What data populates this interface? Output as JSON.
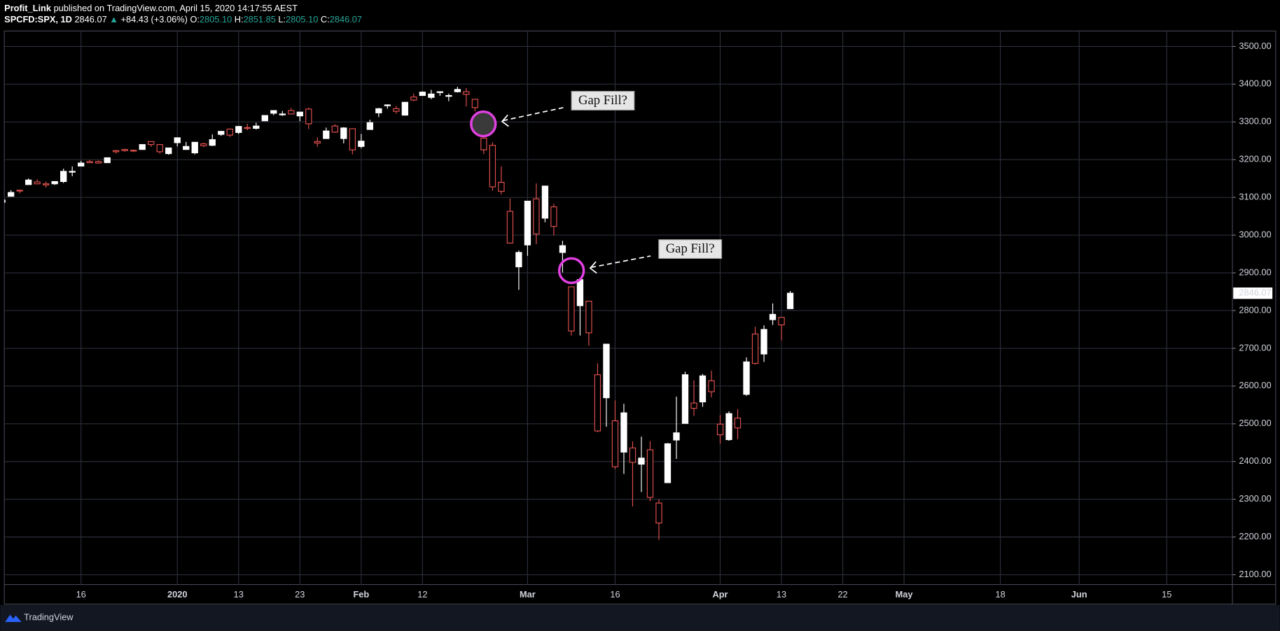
{
  "chart_data": {
    "type": "candlestick",
    "header": {
      "author": "Profit_Link",
      "published": "published on TradingView.com, April 15, 2020 14:17:55 AEST",
      "symbol": "SPCFD:SPX, 1D",
      "last": "2846.07",
      "arrow": "▲",
      "change": "+84.43 (+3.06%)",
      "o_label": "O:",
      "o": "2805.10",
      "h_label": "H:",
      "h": "2851.85",
      "l_label": "L:",
      "l": "2805.10",
      "c_label": "C:",
      "c": "2846.07"
    },
    "categories": [
      null,
      null,
      null,
      null,
      null,
      null,
      null,
      null,
      null,
      "16",
      null,
      null,
      null,
      null,
      null,
      null,
      null,
      null,
      null,
      null,
      "2020",
      null,
      null,
      null,
      null,
      null,
      null,
      "13",
      null,
      null,
      null,
      null,
      null,
      null,
      "23",
      null,
      null,
      null,
      null,
      null,
      null,
      "Feb",
      null,
      null,
      null,
      null,
      null,
      null,
      "12",
      null,
      null,
      null,
      null,
      null,
      null,
      null,
      null,
      null,
      null,
      null,
      "Mar",
      null,
      null,
      null,
      null,
      null,
      null,
      null,
      null,
      null,
      "16",
      null,
      null,
      null,
      null,
      null,
      null,
      null,
      null,
      null,
      null,
      null,
      "Apr",
      null,
      null,
      null,
      null,
      null,
      null,
      "13",
      null,
      null,
      null,
      null,
      null,
      null,
      "22",
      null,
      null,
      null,
      null,
      null,
      null,
      "May",
      null,
      null,
      null,
      null,
      null,
      null,
      null,
      null,
      null,
      null,
      "18",
      null,
      null,
      null,
      null,
      null,
      null,
      null,
      null,
      "Jun",
      null,
      null,
      null,
      null,
      null,
      null,
      null,
      null,
      null,
      "15",
      null,
      null,
      null,
      null,
      null,
      null,
      null
    ],
    "open": [
      3087,
      3103,
      3119,
      3134,
      3141,
      3136,
      3136,
      3142,
      3167,
      3183,
      3195,
      3195,
      3192,
      3224,
      3227,
      3225,
      3227,
      3248,
      3240,
      3216,
      3245,
      3227,
      3218,
      3242,
      3238,
      3267,
      3281,
      3272,
      3285,
      3283,
      3303,
      3323,
      3321,
      3330,
      3316,
      3334,
      3248,
      3256,
      3289,
      3256,
      3282,
      3235,
      3280,
      3324,
      3344,
      3335,
      3318,
      3366,
      3370,
      3365,
      3378,
      3370,
      3380,
      3380,
      3360,
      3257,
      3238,
      3140,
      3063,
      2916,
      2974,
      3096,
      3045,
      3075,
      2954,
      2863,
      2813,
      2825,
      2630,
      2569,
      2508,
      2425,
      2436,
      2393,
      2431,
      2290,
      2344,
      2457,
      2501,
      2555,
      2558,
      2614,
      2499,
      2458,
      2515,
      2578,
      2738,
      2685,
      2776,
      2782,
      2805.1,
      null,
      null,
      null,
      null,
      null,
      null,
      null,
      null,
      null,
      null,
      null,
      null,
      null,
      null,
      null,
      null,
      null,
      null,
      null,
      null,
      null,
      null,
      null,
      null,
      null,
      null,
      null,
      null,
      null,
      null,
      null,
      null,
      null,
      null,
      null,
      null,
      null,
      null,
      null,
      null,
      null,
      null,
      null,
      null,
      null,
      null,
      null,
      null,
      null,
      null
    ],
    "high": [
      3094,
      3119,
      3120,
      3150,
      3148,
      3142,
      3143,
      3176,
      3182,
      3197,
      3199,
      3198,
      3205,
      3226,
      3229,
      3226,
      3240,
      3248,
      3241,
      3231,
      3258,
      3247,
      3246,
      3245,
      3267,
      3275,
      3283,
      3288,
      3295,
      3298,
      3317,
      3330,
      3329,
      3337,
      3326,
      3338,
      3259,
      3285,
      3294,
      3286,
      3282,
      3268,
      3306,
      3337,
      3347,
      3342,
      3352,
      3375,
      3381,
      3385,
      3381,
      3375,
      3393,
      3390,
      3360,
      3259,
      3246,
      3182,
      3097,
      2959,
      3090,
      3137,
      3130,
      3083,
      2985,
      2863,
      2882,
      2825,
      2660,
      2711,
      2562,
      2553,
      2453,
      2466,
      2454,
      2300,
      2449,
      2572,
      2638,
      2615,
      2632,
      2641,
      2523,
      2533,
      2539,
      2676,
      2757,
      2761,
      2819,
      2783,
      2851.85,
      null,
      null,
      null,
      null,
      null,
      null,
      null,
      null,
      null,
      null,
      null,
      null,
      null,
      null,
      null,
      null,
      null,
      null,
      null,
      null,
      null,
      null,
      null,
      null,
      null,
      null,
      null,
      null,
      null,
      null,
      null,
      null,
      null,
      null,
      null,
      null,
      null,
      null,
      null,
      null,
      null,
      null,
      null,
      null,
      null,
      null,
      null,
      null,
      null,
      null
    ],
    "low": [
      3070,
      3102,
      3111,
      3134,
      3135,
      3126,
      3133,
      3138,
      3156,
      3183,
      3191,
      3191,
      3192,
      3216,
      3221,
      3220,
      3227,
      3234,
      3216,
      3213,
      3235,
      3226,
      3214,
      3233,
      3236,
      3263,
      3260,
      3268,
      3278,
      3280,
      3302,
      3318,
      3316,
      3320,
      3302,
      3281,
      3234,
      3255,
      3271,
      3243,
      3214,
      3230,
      3280,
      3313,
      3335,
      3322,
      3317,
      3355,
      3369,
      3360,
      3369,
      3355,
      3378,
      3341,
      3328,
      3215,
      3118,
      3108,
      2977,
      2855,
      2945,
      2976,
      3034,
      2999,
      2901,
      2734,
      2734,
      2707,
      2478,
      2492,
      2380,
      2367,
      2281,
      2319,
      2295,
      2192,
      2344,
      2407,
      2501,
      2521,
      2545,
      2570,
      2447,
      2455,
      2459,
      2574,
      2657,
      2664,
      2762,
      2721,
      2805.1,
      null,
      null,
      null,
      null,
      null,
      null,
      null,
      null,
      null,
      null,
      null,
      null,
      null,
      null,
      null,
      null,
      null,
      null,
      null,
      null,
      null,
      null,
      null,
      null,
      null,
      null,
      null,
      null,
      null,
      null,
      null,
      null,
      null,
      null,
      null,
      null,
      null,
      null,
      null,
      null,
      null,
      null,
      null,
      null,
      null,
      null,
      null,
      null,
      null,
      null
    ],
    "close": [
      3093,
      3113,
      3117,
      3146,
      3136,
      3133,
      3142,
      3169,
      3169,
      3191,
      3192,
      3191,
      3205,
      3221,
      3224,
      3223,
      3240,
      3240,
      3221,
      3231,
      3258,
      3235,
      3246,
      3237,
      3253,
      3275,
      3265,
      3288,
      3283,
      3289,
      3317,
      3330,
      3321,
      3321,
      3326,
      3295,
      3244,
      3276,
      3273,
      3284,
      3226,
      3249,
      3298,
      3335,
      3345,
      3328,
      3352,
      3358,
      3379,
      3374,
      3380,
      3370,
      3386,
      3373,
      3338,
      3226,
      3128,
      3116,
      2979,
      2954,
      3090,
      3003,
      3130,
      3023,
      2972,
      2746,
      2882,
      2741,
      2481,
      2711,
      2386,
      2529,
      2398,
      2409,
      2305,
      2237,
      2447,
      2476,
      2630,
      2541,
      2627,
      2585,
      2471,
      2527,
      2489,
      2664,
      2660,
      2750,
      2790,
      2762,
      2846.07,
      null,
      null,
      null,
      null,
      null,
      null,
      null,
      null,
      null,
      null,
      null,
      null,
      null,
      null,
      null,
      null,
      null,
      null,
      null,
      null,
      null,
      null,
      null,
      null,
      null,
      null,
      null,
      null,
      null,
      null,
      null,
      null,
      null,
      null,
      null,
      null,
      null,
      null,
      null,
      null,
      null,
      null,
      null,
      null,
      null,
      null,
      null,
      null,
      null,
      null
    ],
    "up_color": "#ffffff",
    "down_color": "#e0504e",
    "ylim": [
      2074,
      3541
    ],
    "yticks": [
      {
        "value": 2100,
        "label": "2100.00"
      },
      {
        "value": 2200,
        "label": "2200.00"
      },
      {
        "value": 2300,
        "label": "2300.00"
      },
      {
        "value": 2400,
        "label": "2400.00"
      },
      {
        "value": 2500,
        "label": "2500.00"
      },
      {
        "value": 2600,
        "label": "2600.00"
      },
      {
        "value": 2700,
        "label": "2700.00"
      },
      {
        "value": 2800,
        "label": "2800.00"
      },
      {
        "value": 2900,
        "label": "2900.00"
      },
      {
        "value": 3000,
        "label": "3000.00"
      },
      {
        "value": 3100,
        "label": "3100.00"
      },
      {
        "value": 3200,
        "label": "3200.00"
      },
      {
        "value": 3300,
        "label": "3300.00"
      },
      {
        "value": 3400,
        "label": "3400.00"
      },
      {
        "value": 3500,
        "label": "3500.00"
      }
    ],
    "grid": true,
    "annotations": [
      {
        "text": "Gap Fill?"
      },
      {
        "text": "Gap Fill?"
      }
    ],
    "footer": {
      "brand": "TradingView"
    }
  }
}
